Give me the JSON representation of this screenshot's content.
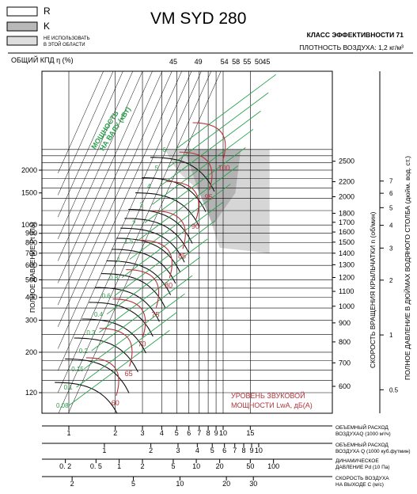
{
  "legend": [
    {
      "label": "R",
      "fill": "#ffffff"
    },
    {
      "label": "K",
      "fill": "#b8b8b8"
    },
    {
      "label": "НЕ ИСПОЛЬЗОВАТЬ\nВ ЭТОЙ ОБЛАСТИ",
      "fill": "#dedede"
    }
  ],
  "header": {
    "model": "VM SYD 280",
    "efficiency_class": "КЛАСС ЭФФЕКТИВНОСТИ 71",
    "density": "ПЛОТНОСТЬ ВОЗДУХА: 1,2 кг/м³",
    "efficiency_label": "ОБЩИЙ КПД η (%)"
  },
  "colors": {
    "shaft_power": "#2aa14a",
    "sound_power": "#b5333a",
    "speed_lines": "#000000",
    "fan_curves": "#111111",
    "bg_zone": "#d6d6d6",
    "k_zone": "#b3b3b3"
  },
  "labels": {
    "left_axis": "ПОЛНОЕ ДАВЛЕНИЕ Pt (Па)",
    "right_speed": "СКОРОСТЬ ВРАЩЕНИЯ КРЫЛЬЧАТКИ  n (об/мин)",
    "right_inwg": "ПОЛНОЕ ДАВЛЕНИЕ В ДЮЙМАХ ВОДЯНОГО СТОЛБА (дюйм. вод. ст.)",
    "shaft_power": "МОЩНОСТЬ\nНА ВАЛУ (кВт)",
    "sound_power": "УРОВЕНЬ ЗВУКОВОЙ\nМОЩНОСТИ LwA, дБ(A)",
    "bottom_rows": [
      "ОБЪЕМНЫЙ РАСХОД\nВОЗДУХАQ (1000 м³/ч)",
      "ОБЪЕМНЫЙ РАСХОД\nВОЗДУХА Q (1000 куб.футмин)",
      "ДИНАМИЧЕСКОЕ\nДАВЛЕНИЕ Pd (10 Па)",
      "СКОРОСТЬ ВОЗДУХА\nНА ВЫХОДЕ C (м/с)"
    ]
  },
  "chart_data": {
    "type": "line",
    "title": "VM SYD 280",
    "xlabel": "ОБЪЕМНЫЙ РАСХОД ВОЗДУХАQ (1000 м³/ч)",
    "ylabel": "ПОЛНОЕ ДАВЛЕНИЕ Pt (Па)",
    "x_scale": "log",
    "y_scale": "log",
    "xlim": [
      0.9,
      20
    ],
    "ylim": [
      110,
      3000
    ],
    "y_ticks": [
      120,
      200,
      300,
      400,
      500,
      600,
      700,
      800,
      900,
      1000,
      1500,
      2000
    ],
    "x_ticks": [
      {
        "v": 1,
        "label": "1"
      },
      {
        "v": 2,
        "label": "2"
      },
      {
        "v": 3,
        "label": "3"
      },
      {
        "v": 4,
        "label": "4"
      },
      {
        "v": 5,
        "label": "5"
      },
      {
        "v": 6,
        "label": "6"
      },
      {
        "v": 7,
        "label": "7"
      },
      {
        "v": 8,
        "label": "8"
      },
      {
        "v": 9,
        "label": "9"
      },
      {
        "v": 10,
        "label": "10"
      },
      {
        "v": 15,
        "label": "15"
      }
    ],
    "speed_ticks": [
      {
        "rpm": 600,
        "p": 130
      },
      {
        "rpm": 700,
        "p": 175
      },
      {
        "rpm": 800,
        "p": 228
      },
      {
        "rpm": 900,
        "p": 290
      },
      {
        "rpm": 1000,
        "p": 358
      },
      {
        "rpm": 1100,
        "p": 432
      },
      {
        "rpm": 1200,
        "p": 515
      },
      {
        "rpm": 1300,
        "p": 605
      },
      {
        "rpm": 1400,
        "p": 700
      },
      {
        "rpm": 1500,
        "p": 805
      },
      {
        "rpm": 1600,
        "p": 915
      },
      {
        "rpm": 1700,
        "p": 1035
      },
      {
        "rpm": 1800,
        "p": 1160
      },
      {
        "rpm": 2000,
        "p": 1430
      },
      {
        "rpm": 2200,
        "p": 1730
      },
      {
        "rpm": 2500,
        "p": 2240
      }
    ],
    "efficiency_ticks": [
      {
        "label": "45",
        "q": 4.75
      },
      {
        "label": "49",
        "q": 6.9
      },
      {
        "label": "54",
        "q": 10.2
      },
      {
        "label": "58",
        "q": 12.1
      },
      {
        "label": "55",
        "q": 14.3
      },
      {
        "label": "50",
        "q": 17.0
      },
      {
        "label": "45",
        "q": 19.0
      }
    ],
    "inwg_ticks": [
      {
        "label": "0.5",
        "p": 124.5
      },
      {
        "label": "1",
        "p": 249
      },
      {
        "label": "2",
        "p": 498
      },
      {
        "label": "3",
        "p": 747
      },
      {
        "label": "4",
        "p": 996
      },
      {
        "label": "5",
        "p": 1245
      },
      {
        "label": "6",
        "p": 1494
      },
      {
        "label": "7",
        "p": 1743
      }
    ],
    "shaft_power_labels": [
      {
        "v": "0.08"
      },
      {
        "v": "0.1"
      },
      {
        "v": "0.15"
      },
      {
        "v": "0.2"
      },
      {
        "v": "0.3"
      },
      {
        "v": "0.4"
      },
      {
        "v": "0.6"
      },
      {
        "v": "0.8"
      },
      {
        "v": "1"
      },
      {
        "v": "1.5"
      },
      {
        "v": "2"
      },
      {
        "v": "3"
      },
      {
        "v": "4"
      },
      {
        "v": "5"
      },
      {
        "v": "6"
      }
    ],
    "sound_power_labels": [
      {
        "v": "60"
      },
      {
        "v": "65"
      },
      {
        "v": "70"
      },
      {
        "v": "75"
      },
      {
        "v": "80"
      },
      {
        "v": "85"
      },
      {
        "v": "90"
      },
      {
        "v": "95"
      },
      {
        "v": "100"
      }
    ],
    "bottom_axes": [
      {
        "name": "q_m3h",
        "ticks": [
          {
            "label": "1",
            "v": 1
          },
          {
            "label": "2",
            "v": 2
          },
          {
            "label": "3",
            "v": 3
          },
          {
            "label": "4",
            "v": 4
          },
          {
            "label": "5",
            "v": 5
          },
          {
            "label": "6",
            "v": 6
          },
          {
            "label": "7",
            "v": 7
          },
          {
            "label": "8",
            "v": 8
          },
          {
            "label": "9",
            "v": 9
          },
          {
            "label": "10",
            "v": 10
          },
          {
            "label": "15",
            "v": 15
          }
        ]
      },
      {
        "name": "q_cfm",
        "ticks": [
          {
            "label": "1",
            "v": 1.7
          },
          {
            "label": "2",
            "v": 3.4
          },
          {
            "label": "3",
            "v": 5.1
          },
          {
            "label": "4",
            "v": 6.8
          },
          {
            "label": "5",
            "v": 8.5
          },
          {
            "label": "6",
            "v": 10.2
          },
          {
            "label": "7",
            "v": 11.9
          },
          {
            "label": "8",
            "v": 13.6
          },
          {
            "label": "9",
            "v": 15.3
          },
          {
            "label": "10",
            "v": 17.0
          }
        ]
      },
      {
        "name": "pd",
        "ticks": [
          {
            "label": "0. 2",
            "v": 0.95
          },
          {
            "label": "0. 5",
            "v": 1.5
          },
          {
            "label": "1",
            "v": 2.12
          },
          {
            "label": "2",
            "v": 3.0
          },
          {
            "label": "5",
            "v": 4.75
          },
          {
            "label": "10",
            "v": 6.7
          },
          {
            "label": "20",
            "v": 9.5
          },
          {
            "label": "50",
            "v": 15.0
          },
          {
            "label": "100",
            "v": 21.2
          }
        ]
      },
      {
        "name": "c",
        "ticks": [
          {
            "label": "2",
            "v": 1.05
          },
          {
            "label": "5",
            "v": 2.62
          },
          {
            "label": "10",
            "v": 5.25
          },
          {
            "label": "20",
            "v": 10.5
          },
          {
            "label": "30",
            "v": 15.7
          }
        ]
      }
    ]
  }
}
